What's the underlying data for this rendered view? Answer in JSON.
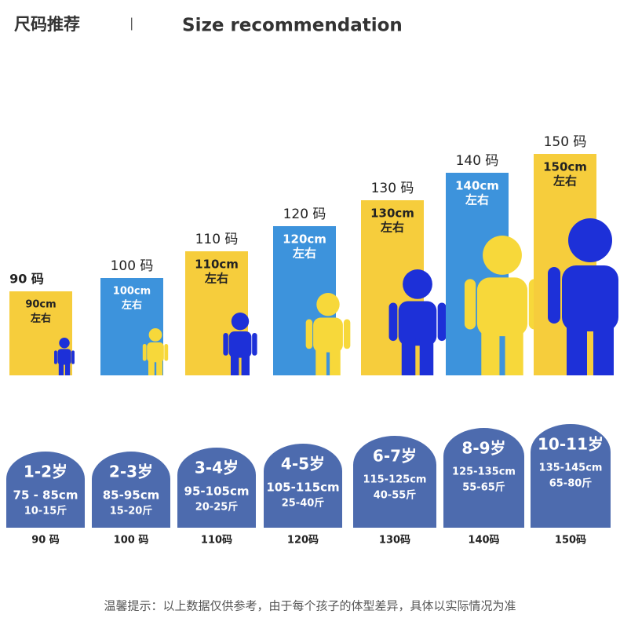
{
  "header": {
    "title": "尺码推荐",
    "separator": "|",
    "subtitle": "Size recommendation"
  },
  "sizes": [
    {
      "label": "90 码",
      "height_text": "90cm",
      "approx": "左右",
      "age": "1-2岁",
      "height_range": "75 - 85cm",
      "weight_range": "10-15斤",
      "bottom_label": "90 码"
    },
    {
      "label": "100 码",
      "height_text": "100cm",
      "approx": "左右",
      "age": "2-3岁",
      "height_range": "85-95cm",
      "weight_range": "15-20斤",
      "bottom_label": "100 码"
    },
    {
      "label": "110 码",
      "height_text": "110cm",
      "approx": "左右",
      "age": "3-4岁",
      "height_range": "95-105cm",
      "weight_range": "20-25斤",
      "bottom_label": "110码"
    },
    {
      "label": "120 码",
      "height_text": "120cm",
      "approx": "左右",
      "age": "4-5岁",
      "height_range": "105-115cm",
      "weight_range": "25-40斤",
      "bottom_label": "120码"
    },
    {
      "label": "130 码",
      "height_text": "130cm",
      "approx": "左右",
      "age": "6-7岁",
      "height_range": "115-125cm",
      "weight_range": "40-55斤",
      "bottom_label": "130码"
    },
    {
      "label": "140 码",
      "height_text": "140cm",
      "approx": "左右",
      "age": "8-9岁",
      "height_range": "125-135cm",
      "weight_range": "55-65斤",
      "bottom_label": "140码"
    },
    {
      "label": "150 码",
      "height_text": "150cm",
      "approx": "左右",
      "age": "10-11岁",
      "height_range": "135-145cm",
      "weight_range": "65-80斤",
      "bottom_label": "150码"
    }
  ],
  "footer": {
    "note": "温馨提示：以上数据仅供参考，由于每个孩子的体型差异，具体以实际情况为准"
  }
}
